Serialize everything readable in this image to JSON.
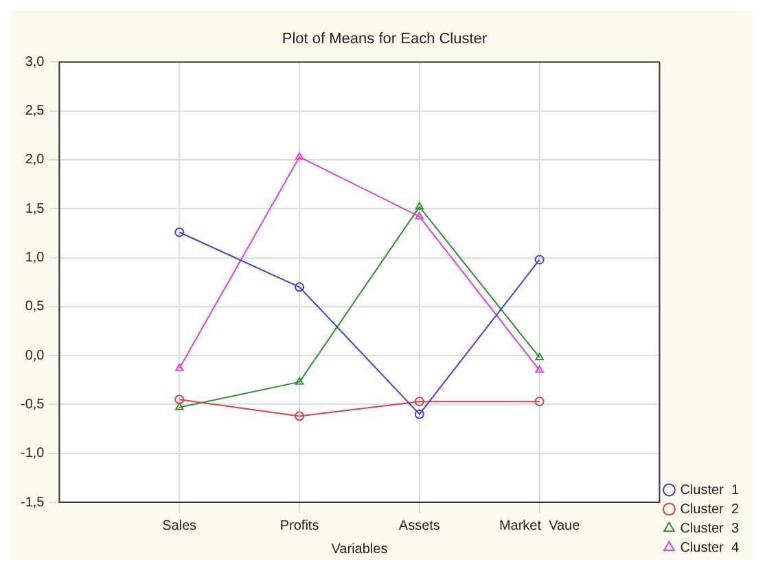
{
  "chart_data": {
    "type": "line",
    "title": "Plot of Means for Each Cluster",
    "xlabel": "Variables",
    "categories": [
      "Sales",
      "Profits",
      "Assets",
      "Market  Vaue"
    ],
    "series": [
      {
        "name": "Cluster  1",
        "color": "#4040e0",
        "marker": "circle",
        "values": [
          1.26,
          0.7,
          -0.6,
          0.98
        ]
      },
      {
        "name": "Cluster  2",
        "color": "#e04040",
        "marker": "circle",
        "values": [
          -0.45,
          -0.62,
          -0.47,
          -0.47
        ]
      },
      {
        "name": "Cluster  3",
        "color": "#309030",
        "marker": "triangle",
        "values": [
          -0.53,
          -0.27,
          1.52,
          -0.02
        ]
      },
      {
        "name": "Cluster  4",
        "color": "#e040e0",
        "marker": "triangle",
        "values": [
          -0.13,
          2.03,
          1.42,
          -0.15
        ]
      }
    ],
    "ylim": [
      -1.5,
      3
    ],
    "yticks": [
      {
        "value": -1.5,
        "label": "-1,5"
      },
      {
        "value": -1,
        "label": "-1,0"
      },
      {
        "value": -0.5,
        "label": "-0,5"
      },
      {
        "value": 0,
        "label": "0,0"
      },
      {
        "value": 0.5,
        "label": "0,5"
      },
      {
        "value": 1,
        "label": "1,0"
      },
      {
        "value": 1.5,
        "label": "1,5"
      },
      {
        "value": 2,
        "label": "2,0"
      },
      {
        "value": 2.5,
        "label": "2,5"
      },
      {
        "value": 3,
        "label": "3,0"
      }
    ],
    "grid": true,
    "legend": "bottom right",
    "line_style": "solid"
  }
}
